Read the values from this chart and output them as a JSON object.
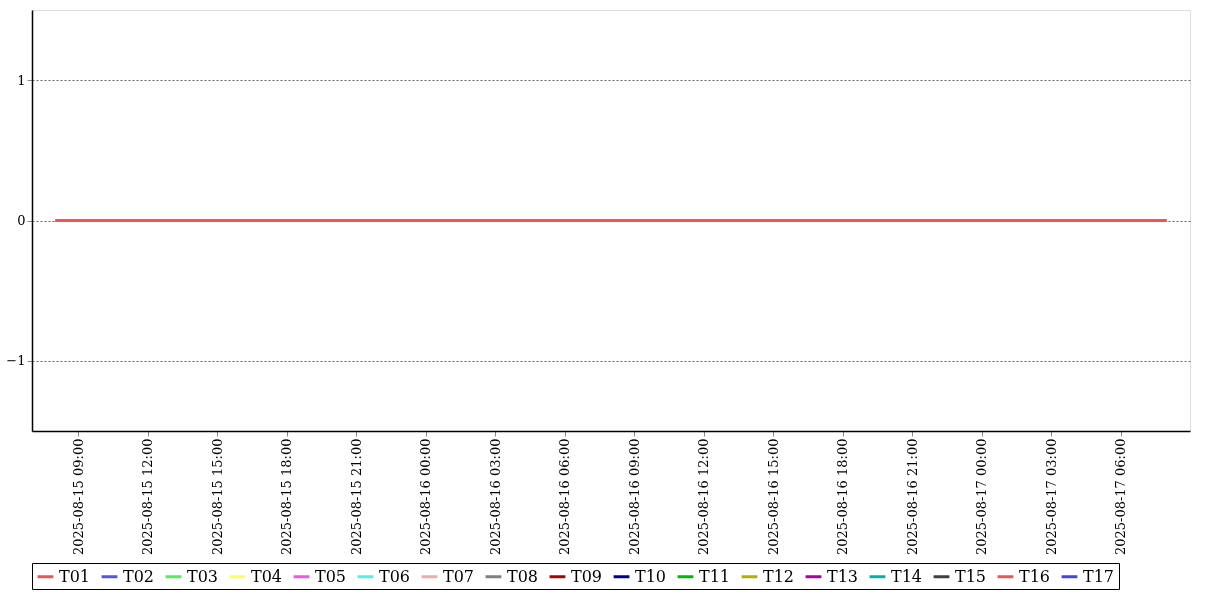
{
  "chart_data": {
    "type": "line",
    "x": [
      "2025-08-15T08:00",
      "2025-08-15T14:00",
      "2025-08-15T20:00",
      "2025-08-16T02:00",
      "2025-08-16T08:00",
      "2025-08-16T14:00",
      "2025-08-16T20:00",
      "2025-08-17T02:00",
      "2025-08-17T08:00"
    ],
    "xlim": [
      "2025-08-15T07:00",
      "2025-08-17T09:00"
    ],
    "xticks": [
      {
        "value": "2025-08-15T09:00",
        "label": "2025-08-15 09:00"
      },
      {
        "value": "2025-08-15T12:00",
        "label": "2025-08-15 12:00"
      },
      {
        "value": "2025-08-15T15:00",
        "label": "2025-08-15 15:00"
      },
      {
        "value": "2025-08-15T18:00",
        "label": "2025-08-15 18:00"
      },
      {
        "value": "2025-08-15T21:00",
        "label": "2025-08-15 21:00"
      },
      {
        "value": "2025-08-16T00:00",
        "label": "2025-08-16 00:00"
      },
      {
        "value": "2025-08-16T03:00",
        "label": "2025-08-16 03:00"
      },
      {
        "value": "2025-08-16T06:00",
        "label": "2025-08-16 06:00"
      },
      {
        "value": "2025-08-16T09:00",
        "label": "2025-08-16 09:00"
      },
      {
        "value": "2025-08-16T12:00",
        "label": "2025-08-16 12:00"
      },
      {
        "value": "2025-08-16T15:00",
        "label": "2025-08-16 15:00"
      },
      {
        "value": "2025-08-16T18:00",
        "label": "2025-08-16 18:00"
      },
      {
        "value": "2025-08-16T21:00",
        "label": "2025-08-16 21:00"
      },
      {
        "value": "2025-08-17T00:00",
        "label": "2025-08-17 00:00"
      },
      {
        "value": "2025-08-17T03:00",
        "label": "2025-08-17 03:00"
      },
      {
        "value": "2025-08-17T06:00",
        "label": "2025-08-17 06:00"
      }
    ],
    "ylim": [
      -1.5,
      1.5
    ],
    "yticks": [
      -1,
      0,
      1
    ],
    "grid": "y",
    "legend": "bottom",
    "line_style": "solid",
    "marker": "none",
    "series": [
      {
        "name": "T01",
        "color": "#ee5555",
        "values": [
          null,
          null,
          null,
          null,
          null,
          null,
          null,
          null,
          null
        ]
      },
      {
        "name": "T02",
        "color": "#5555ee",
        "values": [
          null,
          null,
          null,
          null,
          null,
          null,
          null,
          null,
          null
        ]
      },
      {
        "name": "T03",
        "color": "#55ee55",
        "values": [
          null,
          null,
          null,
          null,
          null,
          null,
          null,
          null,
          null
        ]
      },
      {
        "name": "T04",
        "color": "#ffff55",
        "values": [
          null,
          null,
          null,
          null,
          null,
          null,
          null,
          null,
          null
        ]
      },
      {
        "name": "T05",
        "color": "#ee55ee",
        "values": [
          null,
          null,
          null,
          null,
          null,
          null,
          null,
          null,
          null
        ]
      },
      {
        "name": "T06",
        "color": "#55eeee",
        "values": [
          null,
          null,
          null,
          null,
          null,
          null,
          null,
          null,
          null
        ]
      },
      {
        "name": "T07",
        "color": "#f0aaaa",
        "values": [
          null,
          null,
          null,
          null,
          null,
          null,
          null,
          null,
          null
        ]
      },
      {
        "name": "T08",
        "color": "#808080",
        "values": [
          null,
          null,
          null,
          null,
          null,
          null,
          null,
          null,
          null
        ]
      },
      {
        "name": "T09",
        "color": "#aa0000",
        "values": [
          null,
          null,
          null,
          null,
          null,
          null,
          null,
          null,
          null
        ]
      },
      {
        "name": "T10",
        "color": "#000099",
        "values": [
          null,
          null,
          null,
          null,
          null,
          null,
          null,
          null,
          null
        ]
      },
      {
        "name": "T11",
        "color": "#00bb00",
        "values": [
          null,
          null,
          null,
          null,
          null,
          null,
          null,
          null,
          null
        ]
      },
      {
        "name": "T12",
        "color": "#bbaa00",
        "values": [
          null,
          null,
          null,
          null,
          null,
          null,
          null,
          null,
          null
        ]
      },
      {
        "name": "T13",
        "color": "#aa00aa",
        "values": [
          null,
          null,
          null,
          null,
          null,
          null,
          null,
          null,
          null
        ]
      },
      {
        "name": "T14",
        "color": "#00b0b0",
        "values": [
          null,
          null,
          null,
          null,
          null,
          null,
          null,
          null,
          null
        ]
      },
      {
        "name": "T15",
        "color": "#404040",
        "values": [
          null,
          null,
          null,
          null,
          null,
          null,
          null,
          null,
          null
        ]
      },
      {
        "name": "T16",
        "color": "#ee5555",
        "values": [
          0,
          0,
          0,
          0,
          0,
          0,
          0,
          0,
          0
        ]
      },
      {
        "name": "T17",
        "color": "#4444ee",
        "values": [
          null,
          null,
          null,
          null,
          null,
          null,
          null,
          null,
          null
        ]
      }
    ]
  }
}
